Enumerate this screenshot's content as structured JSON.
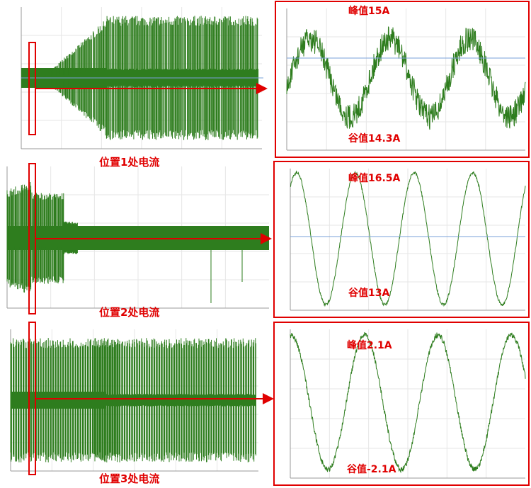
{
  "panels": [
    {
      "label": "位置1处电流",
      "peak": "峰值15A",
      "valley": "谷值14.3A"
    },
    {
      "label": "位置2处电流",
      "peak": "峰值16.5A",
      "valley": "谷值13A"
    },
    {
      "label": "位置3处电流",
      "peak": "峰值2.1A",
      "valley": "谷值-2.1A"
    }
  ]
}
